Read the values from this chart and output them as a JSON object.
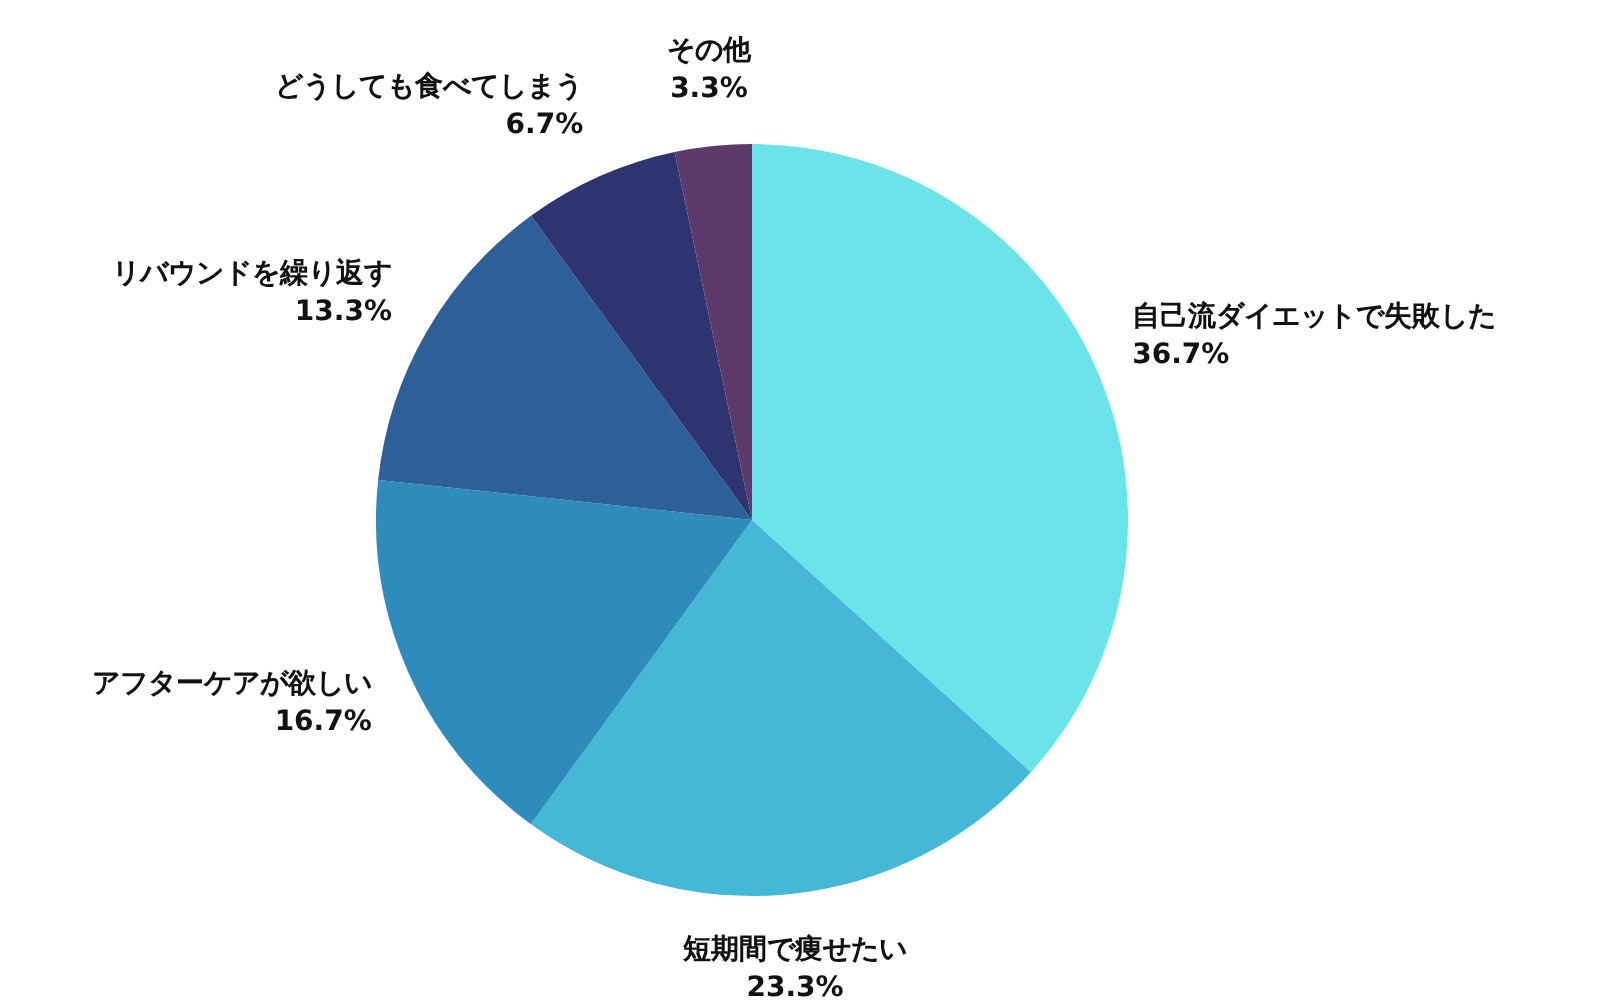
{
  "chart_data": {
    "type": "pie",
    "categories": [
      "自己流ダイエットで失敗した",
      "短期間で痩せたい",
      "アフターケアが欲しい",
      "リバウンドを繰り返す",
      "どうしても食べてしまう",
      "その他"
    ],
    "values": [
      36.7,
      23.3,
      16.7,
      13.3,
      6.7,
      3.3
    ],
    "value_labels": [
      "36.7%",
      "23.3%",
      "16.7%",
      "13.3%",
      "6.7%",
      "3.3%"
    ],
    "colors": [
      "#6ae4e8",
      "#44b8d6",
      "#2e8cbc",
      "#2d5f98",
      "#2e3470",
      "#5e3a6b"
    ],
    "legend": false
  }
}
